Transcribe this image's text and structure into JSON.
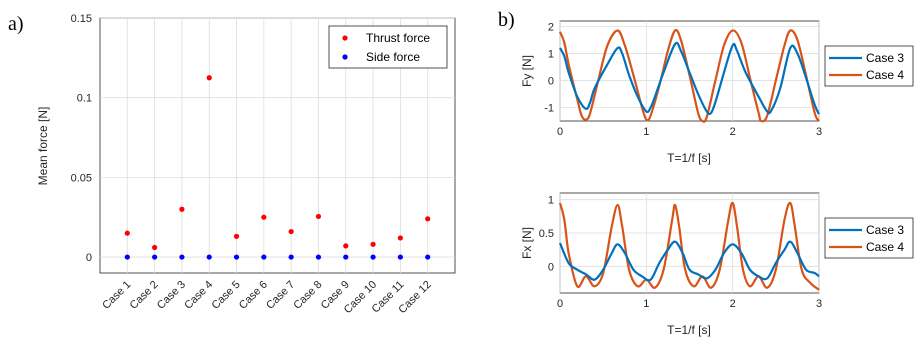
{
  "panel_labels": [
    "a)",
    "b)"
  ],
  "chart_data": [
    {
      "type": "scatter",
      "panel": "a)",
      "xlabel": "",
      "ylabel": "Mean force [N]",
      "categories": [
        "Case 1",
        "Case 2",
        "Case 3",
        "Case 4",
        "Case 5",
        "Case 6",
        "Case 7",
        "Case 8",
        "Case 9",
        "Case 10",
        "Case 11",
        "Case 12"
      ],
      "ylim": [
        -0.01,
        0.15
      ],
      "yticks": [
        0,
        0.05,
        0.1,
        0.15
      ],
      "ytick_labels": [
        "0",
        "0.05",
        "0.1",
        "0.15"
      ],
      "grid": true,
      "legend_position": "top-right",
      "series": [
        {
          "name": "Thrust force",
          "color": "#ff0000",
          "values": [
            0.015,
            0.006,
            0.03,
            0.1125,
            0.013,
            0.025,
            0.016,
            0.0255,
            0.007,
            0.008,
            0.012,
            0.024
          ]
        },
        {
          "name": "Side force",
          "color": "#0000ff",
          "values": [
            0,
            0,
            0,
            0,
            0,
            0,
            0,
            0,
            0,
            0,
            0,
            0
          ]
        }
      ]
    },
    {
      "type": "line",
      "panel": "b)",
      "xlabel": "T=1/f [s]",
      "ylabel": "Fy [N]",
      "xlim": [
        0,
        3
      ],
      "ylim": [
        -1.5,
        2.2
      ],
      "xticks": [
        0,
        1,
        2,
        3
      ],
      "yticks": [
        -1,
        0,
        1,
        2
      ],
      "ytick_labels": [
        "-1",
        "0",
        "1",
        "2"
      ],
      "grid": true,
      "legend_position": "outside-right",
      "series": [
        {
          "name": "Case 3",
          "color": "#0072bd",
          "x": [
            0,
            0.05,
            0.1,
            0.2,
            0.3,
            0.35,
            0.4,
            0.55,
            0.667,
            0.72,
            0.8,
            0.9,
            1.0,
            1.05,
            1.1,
            1.2,
            1.333,
            1.4,
            1.5,
            1.6,
            1.7,
            1.75,
            1.8,
            1.9,
            2.0,
            2.05,
            2.15,
            2.3,
            2.4,
            2.45,
            2.55,
            2.667,
            2.75,
            2.85,
            2.95,
            3.0
          ],
          "y": [
            1.2,
            0.9,
            0.3,
            -0.6,
            -1.05,
            -0.8,
            -0.3,
            0.6,
            1.2,
            1.0,
            0.2,
            -0.6,
            -1.15,
            -1.0,
            -0.6,
            0.3,
            1.35,
            1.1,
            0.3,
            -0.5,
            -1.15,
            -1.2,
            -0.8,
            0.3,
            1.3,
            1.1,
            0.3,
            -0.6,
            -1.15,
            -1.1,
            -0.3,
            1.2,
            1.0,
            0.1,
            -0.9,
            -1.25
          ]
        },
        {
          "name": "Case 4",
          "color": "#d95319",
          "x": [
            0,
            0.05,
            0.1,
            0.2,
            0.25,
            0.3,
            0.35,
            0.45,
            0.55,
            0.667,
            0.75,
            0.85,
            0.95,
            1.0,
            1.05,
            1.15,
            1.25,
            1.333,
            1.4,
            1.5,
            1.6,
            1.65,
            1.7,
            1.8,
            1.9,
            2.0,
            2.1,
            2.2,
            2.3,
            2.33,
            2.4,
            2.5,
            2.6,
            2.667,
            2.75,
            2.85,
            2.95,
            3.0
          ],
          "y": [
            1.8,
            1.4,
            0.6,
            -0.7,
            -1.3,
            -1.45,
            -1.2,
            0.1,
            1.3,
            1.85,
            1.3,
            0.2,
            -1.0,
            -1.45,
            -1.3,
            -0.2,
            1.1,
            1.85,
            1.5,
            0.2,
            -1.2,
            -1.5,
            -1.35,
            0.0,
            1.3,
            1.85,
            1.4,
            0.1,
            -1.2,
            -1.5,
            -1.3,
            0.0,
            1.3,
            1.85,
            1.5,
            0.2,
            -1.2,
            -1.5
          ]
        }
      ]
    },
    {
      "type": "line",
      "panel": "b)",
      "xlabel": "T=1/f [s]",
      "ylabel": "Fx [N]",
      "xlim": [
        0,
        3
      ],
      "ylim": [
        -0.4,
        1.1
      ],
      "xticks": [
        0,
        1,
        2,
        3
      ],
      "yticks": [
        0,
        0.5,
        1
      ],
      "ytick_labels": [
        "0",
        "0.5",
        "1"
      ],
      "grid": true,
      "legend_position": "outside-right",
      "series": [
        {
          "name": "Case 3",
          "color": "#0072bd",
          "x": [
            0,
            0.1,
            0.2,
            0.3,
            0.4,
            0.5,
            0.6,
            0.667,
            0.75,
            0.85,
            0.95,
            1.05,
            1.15,
            1.25,
            1.333,
            1.42,
            1.5,
            1.6,
            1.7,
            1.8,
            1.9,
            2.0,
            2.1,
            2.2,
            2.3,
            2.4,
            2.5,
            2.6,
            2.667,
            2.75,
            2.85,
            2.95,
            3.0
          ],
          "y": [
            0.35,
            0.05,
            -0.05,
            -0.12,
            -0.2,
            -0.05,
            0.2,
            0.33,
            0.2,
            -0.05,
            -0.15,
            -0.2,
            0.05,
            0.25,
            0.37,
            0.2,
            -0.05,
            -0.12,
            -0.18,
            -0.05,
            0.2,
            0.33,
            0.2,
            -0.05,
            -0.15,
            -0.18,
            0.05,
            0.25,
            0.37,
            0.2,
            -0.05,
            -0.1,
            -0.15
          ]
        },
        {
          "name": "Case 4",
          "color": "#d95319",
          "x": [
            0,
            0.05,
            0.1,
            0.2,
            0.3,
            0.4,
            0.5,
            0.6,
            0.667,
            0.72,
            0.8,
            0.9,
            1.0,
            1.1,
            1.2,
            1.3,
            1.333,
            1.38,
            1.45,
            1.55,
            1.65,
            1.75,
            1.85,
            1.95,
            2.0,
            2.05,
            2.12,
            2.2,
            2.3,
            2.4,
            2.5,
            2.6,
            2.667,
            2.72,
            2.8,
            2.9,
            3.0
          ],
          "y": [
            0.95,
            0.7,
            0.2,
            -0.3,
            -0.15,
            -0.3,
            -0.1,
            0.6,
            0.92,
            0.6,
            -0.05,
            -0.3,
            -0.2,
            -0.32,
            -0.05,
            0.7,
            0.92,
            0.6,
            -0.05,
            -0.3,
            -0.15,
            -0.32,
            -0.05,
            0.7,
            0.95,
            0.6,
            -0.05,
            -0.3,
            -0.15,
            -0.32,
            -0.05,
            0.7,
            0.95,
            0.6,
            -0.05,
            -0.25,
            -0.35
          ]
        }
      ]
    }
  ]
}
